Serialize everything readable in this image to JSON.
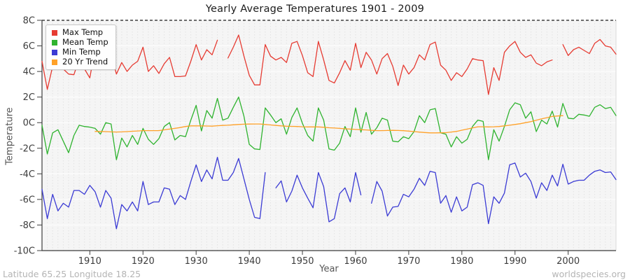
{
  "title": "Yearly Average Temperatures 1901 - 2009",
  "axes": {
    "xlabel": "Year",
    "ylabel": "Temperature",
    "ytick_labels": [
      "8C",
      "6C",
      "4C",
      "2C",
      "0C",
      "-2C",
      "-4C",
      "-6C",
      "-8C",
      "-10C"
    ],
    "xtick_labels": [
      "1910",
      "1920",
      "1930",
      "1940",
      "1950",
      "1960",
      "1970",
      "1980",
      "1990",
      "2000"
    ]
  },
  "footer": {
    "left": "Latitude 65.25 Longitude 18.25",
    "right": "worldspecies.org"
  },
  "colors": {
    "plot_background": "#f5f5f5",
    "year_gridline": "#e2e2e2",
    "h_gridline": "#ffffff",
    "axis": "#3c3c3c",
    "top_dashed_line": "#1a1a1a",
    "right_border": "#d9d9d9",
    "tick_label": "#3d3d3d"
  },
  "chart_data": {
    "type": "line",
    "title": "Yearly Average Temperatures 1901 - 2009",
    "xlabel": "Year",
    "ylabel": "Temperature",
    "x_range": [
      1901,
      2009
    ],
    "ylim": [
      -10,
      8
    ],
    "yticks": [
      8,
      6,
      4,
      2,
      0,
      -2,
      -4,
      -6,
      -8,
      -10
    ],
    "xticks": [
      1910,
      1920,
      1930,
      1940,
      1950,
      1960,
      1970,
      1980,
      1990,
      2000
    ],
    "grid": "vertical dashed line per year; horizontal white line every 2C; dashed black line at 8C",
    "legend_position": "top-left",
    "series": [
      {
        "name": "Max Temp",
        "color": "#e63b32",
        "start_year": 1901,
        "values": [
          4.8,
          2.6,
          4.4,
          5.5,
          4.2,
          3.8,
          3.75,
          5.0,
          4.2,
          3.5,
          5.8,
          4.4,
          4.7,
          5.4,
          3.8,
          4.7,
          4.0,
          4.5,
          4.8,
          5.9,
          4.0,
          4.45,
          3.85,
          4.6,
          5.1,
          3.6,
          3.6,
          3.65,
          4.8,
          6.1,
          4.9,
          5.7,
          5.3,
          6.45,
          null,
          5.05,
          5.9,
          6.85,
          5.2,
          3.7,
          2.95,
          2.95,
          6.1,
          5.2,
          4.9,
          5.1,
          4.7,
          6.2,
          6.35,
          5.25,
          3.9,
          3.6,
          6.35,
          4.9,
          3.3,
          3.1,
          3.9,
          4.85,
          4.1,
          6.2,
          4.3,
          5.5,
          4.9,
          3.8,
          5.0,
          5.4,
          4.4,
          2.9,
          4.5,
          3.8,
          4.3,
          5.3,
          4.9,
          6.1,
          6.3,
          4.5,
          4.1,
          3.3,
          3.9,
          3.6,
          4.2,
          5.0,
          4.9,
          4.85,
          2.2,
          4.3,
          3.3,
          5.5,
          6.0,
          6.35,
          5.5,
          5.1,
          5.3,
          4.65,
          4.45,
          4.75,
          4.9,
          null,
          6.1,
          5.25,
          5.7,
          5.9,
          5.65,
          5.4,
          6.2,
          6.5,
          6.0,
          5.9,
          5.35
        ]
      },
      {
        "name": "Mean Temp",
        "color": "#2fb32f",
        "start_year": 1901,
        "values": [
          -0.2,
          -2.45,
          -0.8,
          -0.55,
          -1.45,
          -2.35,
          -1.0,
          -0.2,
          -0.3,
          -0.35,
          -0.45,
          -0.9,
          0.0,
          -0.1,
          -2.9,
          -1.2,
          -1.9,
          -1.0,
          -1.7,
          -0.45,
          -1.3,
          -1.7,
          -1.25,
          -0.3,
          0.0,
          -1.35,
          -1.0,
          -1.1,
          0.2,
          1.35,
          -0.65,
          0.95,
          0.35,
          1.9,
          0.2,
          0.35,
          1.2,
          2.0,
          0.5,
          -1.7,
          -2.05,
          -2.1,
          1.15,
          0.6,
          0.0,
          0.3,
          -0.9,
          0.4,
          1.15,
          -0.05,
          -1.0,
          -1.45,
          1.15,
          0.2,
          -2.05,
          -2.15,
          -1.6,
          -0.3,
          -1.1,
          1.15,
          -0.75,
          0.8,
          -0.9,
          -0.4,
          0.35,
          0.2,
          -1.45,
          -1.5,
          -1.1,
          -1.25,
          -0.7,
          0.55,
          0.0,
          1.0,
          1.1,
          -0.8,
          -0.9,
          -1.9,
          -1.1,
          -1.6,
          -1.3,
          -0.3,
          0.2,
          0.1,
          -2.9,
          -0.55,
          -1.45,
          -0.3,
          1.0,
          1.55,
          1.4,
          0.35,
          0.85,
          -0.7,
          0.2,
          -0.1,
          0.9,
          -0.35,
          1.5,
          0.35,
          0.3,
          0.65,
          0.6,
          0.5,
          1.2,
          1.4,
          1.1,
          1.2,
          0.55
        ]
      },
      {
        "name": "Min Temp",
        "color": "#3b3bd4",
        "start_year": 1901,
        "values": [
          -5.2,
          -7.5,
          -5.6,
          -6.9,
          -6.3,
          -6.6,
          -5.3,
          -5.3,
          -5.6,
          -4.9,
          -5.4,
          -6.6,
          -5.3,
          -5.9,
          -8.3,
          -6.4,
          -6.9,
          -6.2,
          -6.9,
          -4.6,
          -6.4,
          -6.2,
          -6.2,
          -5.1,
          -5.2,
          -6.4,
          -5.7,
          -6.0,
          -4.6,
          -3.3,
          -4.6,
          -3.7,
          -4.4,
          -2.7,
          -4.5,
          -4.5,
          -3.9,
          -2.8,
          -4.4,
          -6.0,
          -7.4,
          -7.5,
          -3.9,
          null,
          -5.1,
          -4.55,
          -6.2,
          -5.35,
          -4.1,
          -5.1,
          -5.9,
          -6.65,
          -3.9,
          -5.0,
          -7.75,
          -7.5,
          -5.55,
          -5.1,
          -6.2,
          -3.9,
          -5.65,
          null,
          -6.3,
          -4.6,
          -5.35,
          -7.3,
          -6.6,
          -6.55,
          -5.6,
          -5.8,
          -5.2,
          -4.35,
          -4.9,
          -3.8,
          -3.9,
          -6.3,
          -5.7,
          -7.0,
          -5.8,
          -6.9,
          -6.6,
          -4.85,
          -4.7,
          -4.9,
          -7.9,
          -5.8,
          -6.3,
          -5.5,
          -3.3,
          -3.15,
          -4.25,
          -3.95,
          -4.6,
          -5.9,
          -4.7,
          -5.3,
          -4.1,
          -4.95,
          -3.25,
          -4.8,
          -4.6,
          -4.5,
          -4.5,
          -4.1,
          -3.8,
          -3.7,
          -3.9,
          -3.85,
          -4.45
        ]
      },
      {
        "name": "20 Yr Trend",
        "color": "#ffa128",
        "start_year": 1911,
        "values": [
          -0.68,
          -0.69,
          -0.7,
          -0.72,
          -0.73,
          -0.72,
          -0.7,
          -0.67,
          -0.65,
          -0.62,
          -0.62,
          -0.62,
          -0.62,
          -0.56,
          -0.5,
          -0.45,
          -0.38,
          -0.3,
          -0.25,
          -0.25,
          -0.25,
          -0.26,
          -0.27,
          -0.24,
          -0.22,
          -0.2,
          -0.17,
          -0.14,
          -0.12,
          -0.11,
          -0.1,
          -0.1,
          -0.14,
          -0.18,
          -0.22,
          -0.25,
          -0.28,
          -0.29,
          -0.3,
          -0.32,
          -0.33,
          -0.33,
          -0.33,
          -0.36,
          -0.4,
          -0.42,
          -0.45,
          -0.48,
          -0.5,
          -0.53,
          -0.55,
          -0.57,
          -0.6,
          -0.62,
          -0.62,
          -0.61,
          -0.6,
          -0.61,
          -0.63,
          -0.66,
          -0.7,
          -0.74,
          -0.77,
          -0.8,
          -0.8,
          -0.79,
          -0.78,
          -0.73,
          -0.68,
          -0.59,
          -0.5,
          -0.41,
          -0.32,
          -0.32,
          -0.33,
          -0.32,
          -0.3,
          -0.25,
          -0.2,
          -0.14,
          -0.08,
          0.0,
          0.08,
          0.19,
          0.3,
          0.39,
          0.48,
          0.52,
          0.55
        ]
      }
    ]
  }
}
